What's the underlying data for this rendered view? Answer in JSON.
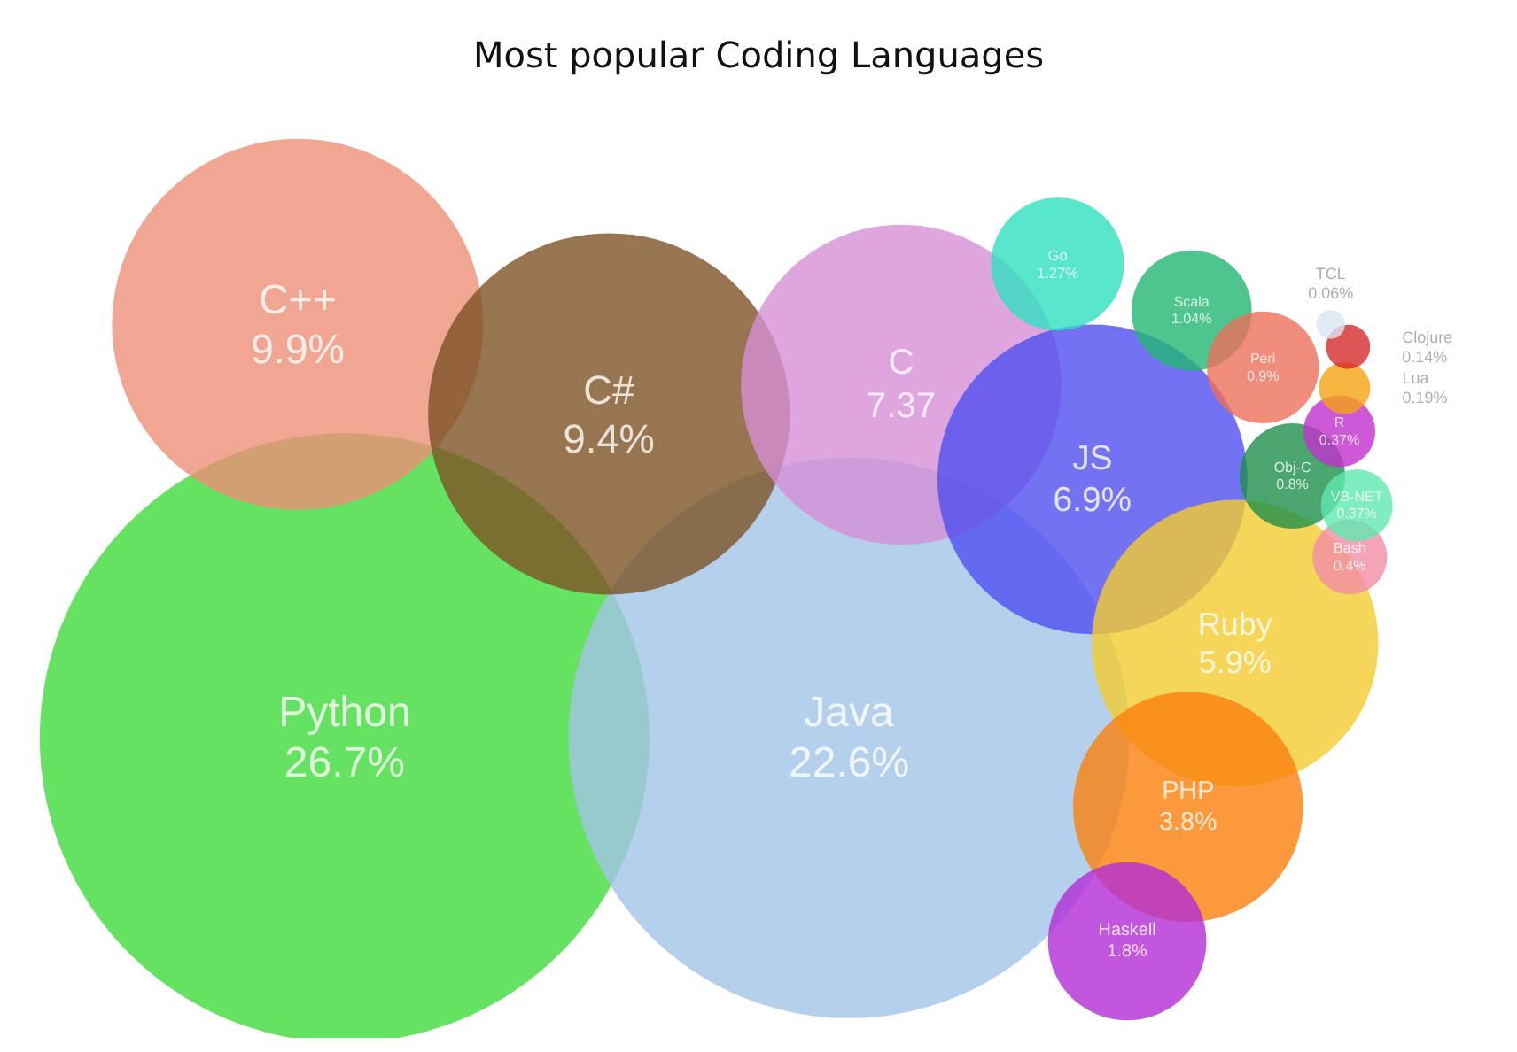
{
  "chart_data": {
    "type": "other",
    "title": "Most popular Coding Languages",
    "categories": [
      "Python",
      "Java",
      "C++",
      "C#",
      "C",
      "JS",
      "Ruby",
      "PHP",
      "Haskell",
      "Go",
      "Scala",
      "Perl",
      "Obj-C",
      "Bash",
      "VB-NET",
      "R",
      "Lua",
      "Clojure",
      "TCL"
    ],
    "values": [
      26.7,
      22.6,
      9.9,
      9.4,
      7.37,
      6.9,
      5.9,
      3.8,
      1.8,
      1.27,
      1.04,
      0.9,
      0.8,
      0.4,
      0.37,
      0.37,
      0.19,
      0.14,
      0.06
    ],
    "value_labels": [
      "26.7%",
      "22.6%",
      "9.9%",
      "9.4%",
      "7.37",
      "6.9%",
      "5.9%",
      "3.8%",
      "1.8%",
      "1.27%",
      "1.04%",
      "0.9%",
      "0.8%",
      "0.4%",
      "0.37%",
      "0.37%",
      "0.19%",
      "0.14%",
      "0.06%"
    ],
    "colors": [
      "#3fdb3a",
      "#a3c4e8",
      "#ee8e78",
      "#7d5226",
      "#d68fd6",
      "#4f4ff0",
      "#f2cc30",
      "#fb7f0c",
      "#b32cd6",
      "#2ee0c0",
      "#22b573",
      "#ec6f5a",
      "#1e8f4a",
      "#f28ca5",
      "#5fe8b0",
      "#c22fce",
      "#f5a313",
      "#d42a2a",
      "#d9e6f2"
    ]
  }
}
